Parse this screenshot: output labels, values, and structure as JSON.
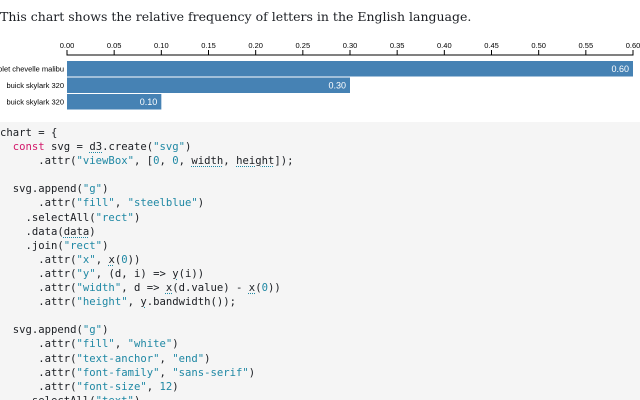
{
  "intro_text": "This chart shows the relative frequency of letters in the English language.",
  "theme": {
    "bar_color": "#4682b4",
    "label_color": "#ffffff",
    "code_background": "#f5f5f5",
    "keyword_color": "#d2186a",
    "string_color": "#1f88a4"
  },
  "chart_data": {
    "type": "bar",
    "orientation": "horizontal",
    "title": "",
    "xlabel": "",
    "ylabel": "",
    "xlim": [
      0,
      0.6
    ],
    "x_ticks": [
      "0.00",
      "0.05",
      "0.10",
      "0.15",
      "0.20",
      "0.25",
      "0.30",
      "0.35",
      "0.40",
      "0.45",
      "0.50",
      "0.55",
      "0.60"
    ],
    "x_axis_position": "top",
    "grid": false,
    "categories": [
      "chevrolet chevelle malibu",
      "buick skylark 320",
      "buick skylark 320"
    ],
    "values": [
      0.6,
      0.3,
      0.1
    ],
    "value_labels": [
      "0.60",
      "0.30",
      "0.10"
    ]
  },
  "code": {
    "lines": [
      "chart = {",
      "  const svg = d3.create(\"svg\")",
      "      .attr(\"viewBox\", [0, 0, width, height]);",
      "",
      "  svg.append(\"g\")",
      "      .attr(\"fill\", \"steelblue\")",
      "    .selectAll(\"rect\")",
      "    .data(data)",
      "    .join(\"rect\")",
      "      .attr(\"x\", x(0))",
      "      .attr(\"y\", (d, i) => y(i))",
      "      .attr(\"width\", d => x(d.value) - x(0))",
      "      .attr(\"height\", y.bandwidth());",
      "",
      "  svg.append(\"g\")",
      "      .attr(\"fill\", \"white\")",
      "      .attr(\"text-anchor\", \"end\")",
      "      .attr(\"font-family\", \"sans-serif\")",
      "      .attr(\"font-size\", 12)",
      "    .selectAll(\"text\")"
    ]
  }
}
